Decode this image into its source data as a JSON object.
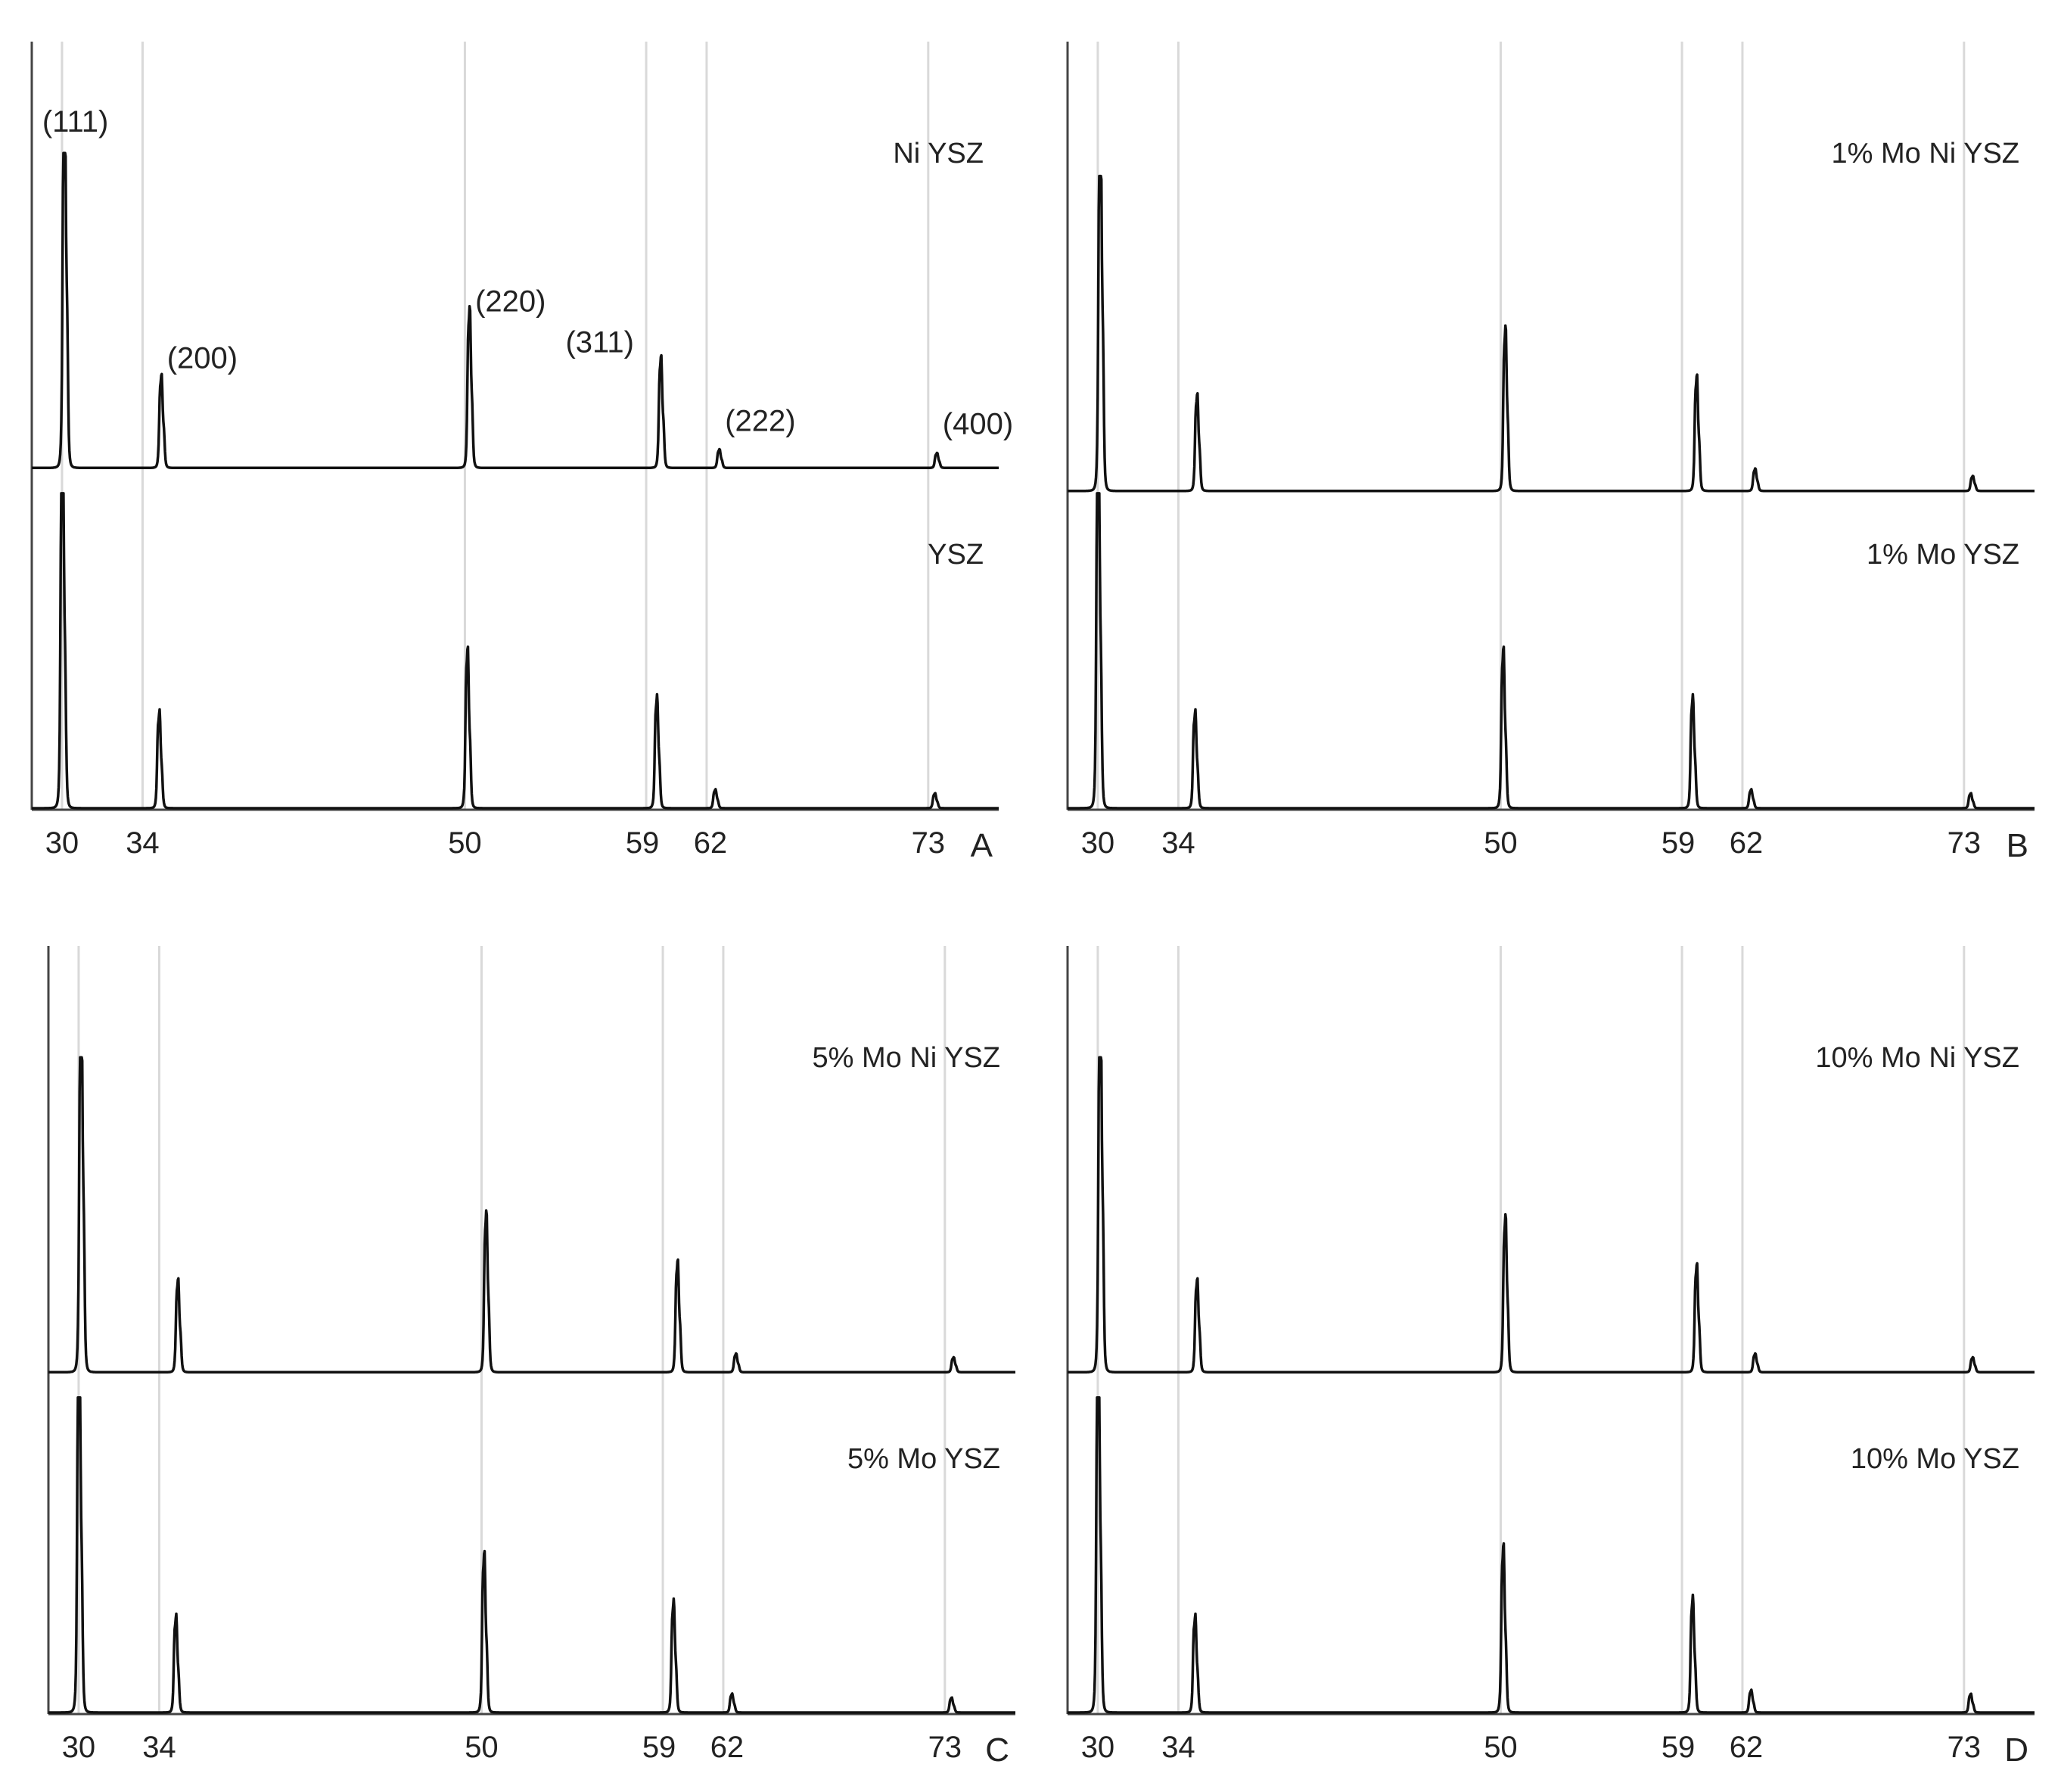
{
  "figure": {
    "line_color": "#111111",
    "grid_color": "#d9d9d9",
    "axis_color": "#444444"
  },
  "chart_data": [
    {
      "type": "line",
      "panel_label": "A",
      "xlabel": "",
      "ylabel": "",
      "x_range": [
        28.5,
        76.5
      ],
      "grid": "vertical at reference angles",
      "x_ticks": [
        30,
        34,
        50,
        59,
        62,
        73
      ],
      "tick_labels": [
        "30",
        "34",
        "50",
        "59",
        "62",
        "73"
      ],
      "series": [
        {
          "name": "Ni YSZ",
          "label_position": "upper-right",
          "peaks": [
            {
              "x": 30.1,
              "height": 1.0,
              "hkl": "(111)"
            },
            {
              "x": 34.9,
              "height": 0.25,
              "hkl": "(200)"
            },
            {
              "x": 50.2,
              "height": 0.43,
              "hkl": "(220)"
            },
            {
              "x": 59.7,
              "height": 0.3,
              "hkl": "(311)"
            },
            {
              "x": 62.6,
              "height": 0.05,
              "hkl": "(222)"
            },
            {
              "x": 73.4,
              "height": 0.04,
              "hkl": "(400)"
            }
          ]
        },
        {
          "name": "YSZ",
          "label_position": "lower-right",
          "peaks": [
            {
              "x": 30.0,
              "height": 1.0
            },
            {
              "x": 34.8,
              "height": 0.26
            },
            {
              "x": 50.1,
              "height": 0.43
            },
            {
              "x": 59.5,
              "height": 0.3
            },
            {
              "x": 62.4,
              "height": 0.05
            },
            {
              "x": 73.3,
              "height": 0.04
            }
          ]
        }
      ]
    },
    {
      "type": "line",
      "panel_label": "B",
      "xlabel": "",
      "ylabel": "",
      "x_range": [
        28.5,
        76.5
      ],
      "grid": "vertical at reference angles",
      "x_ticks": [
        30,
        34,
        50,
        59,
        62,
        73
      ],
      "tick_labels": [
        "30",
        "34",
        "50",
        "59",
        "62",
        "73"
      ],
      "series": [
        {
          "name": "1% Mo Ni YSZ",
          "label_position": "upper-right",
          "peaks": [
            {
              "x": 30.1,
              "height": 1.0
            },
            {
              "x": 34.9,
              "height": 0.26
            },
            {
              "x": 50.2,
              "height": 0.44
            },
            {
              "x": 59.7,
              "height": 0.31
            },
            {
              "x": 62.6,
              "height": 0.06
            },
            {
              "x": 73.4,
              "height": 0.04
            }
          ]
        },
        {
          "name": "1% Mo YSZ",
          "label_position": "lower-right",
          "peaks": [
            {
              "x": 30.0,
              "height": 1.0
            },
            {
              "x": 34.8,
              "height": 0.26
            },
            {
              "x": 50.1,
              "height": 0.43
            },
            {
              "x": 59.5,
              "height": 0.3
            },
            {
              "x": 62.4,
              "height": 0.05
            },
            {
              "x": 73.3,
              "height": 0.04
            }
          ]
        }
      ]
    },
    {
      "type": "line",
      "panel_label": "C",
      "xlabel": "",
      "ylabel": "",
      "x_range": [
        28.5,
        76.5
      ],
      "grid": "vertical at reference angles",
      "x_ticks": [
        30,
        34,
        50,
        59,
        62,
        73
      ],
      "tick_labels": [
        "30",
        "34",
        "50",
        "59",
        "62",
        "73"
      ],
      "series": [
        {
          "name": "5% Mo Ni YSZ",
          "label_position": "upper-right",
          "peaks": [
            {
              "x": 30.1,
              "height": 1.0
            },
            {
              "x": 34.9,
              "height": 0.25
            },
            {
              "x": 50.2,
              "height": 0.43
            },
            {
              "x": 59.7,
              "height": 0.3
            },
            {
              "x": 62.6,
              "height": 0.05
            },
            {
              "x": 73.4,
              "height": 0.04
            }
          ]
        },
        {
          "name": "5% Mo YSZ",
          "label_position": "lower-right",
          "peaks": [
            {
              "x": 30.0,
              "height": 1.0
            },
            {
              "x": 34.8,
              "height": 0.26
            },
            {
              "x": 50.1,
              "height": 0.43
            },
            {
              "x": 59.5,
              "height": 0.3
            },
            {
              "x": 62.4,
              "height": 0.05
            },
            {
              "x": 73.3,
              "height": 0.04
            }
          ]
        }
      ]
    },
    {
      "type": "line",
      "panel_label": "D",
      "xlabel": "",
      "ylabel": "",
      "x_range": [
        28.5,
        76.5
      ],
      "grid": "vertical at reference angles",
      "x_ticks": [
        30,
        34,
        50,
        59,
        62,
        73
      ],
      "tick_labels": [
        "30",
        "34",
        "50",
        "59",
        "62",
        "73"
      ],
      "series": [
        {
          "name": "10% Mo Ni YSZ",
          "label_position": "upper-right",
          "peaks": [
            {
              "x": 30.1,
              "height": 1.0
            },
            {
              "x": 34.9,
              "height": 0.25
            },
            {
              "x": 50.2,
              "height": 0.42
            },
            {
              "x": 59.7,
              "height": 0.29
            },
            {
              "x": 62.6,
              "height": 0.05
            },
            {
              "x": 73.4,
              "height": 0.04
            }
          ]
        },
        {
          "name": "10% Mo YSZ",
          "label_position": "lower-right",
          "peaks": [
            {
              "x": 30.0,
              "height": 1.0
            },
            {
              "x": 34.8,
              "height": 0.26
            },
            {
              "x": 50.1,
              "height": 0.45
            },
            {
              "x": 59.5,
              "height": 0.31
            },
            {
              "x": 62.4,
              "height": 0.06
            },
            {
              "x": 73.3,
              "height": 0.05
            }
          ]
        }
      ]
    }
  ]
}
